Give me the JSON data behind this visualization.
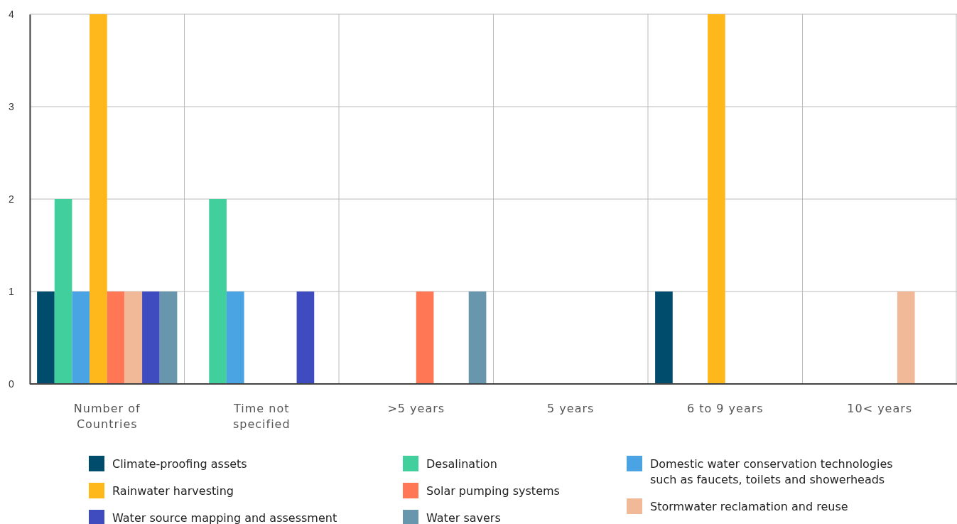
{
  "chart_data": {
    "type": "bar",
    "categories": [
      "Number of Countries",
      "Time not specified",
      ">5 years",
      "5 years",
      "6 to 9 years",
      "10< years"
    ],
    "series": [
      {
        "name": "Climate-proofing assets",
        "color": "#004c6d",
        "values": [
          1,
          0,
          0,
          0,
          1,
          0
        ]
      },
      {
        "name": "Desalination",
        "color": "#42cf9e",
        "values": [
          2,
          2,
          0,
          0,
          0,
          0
        ]
      },
      {
        "name": "Domestic water conservation technologies such as faucets, toilets and showerheads",
        "color": "#4aa3e3",
        "values": [
          1,
          1,
          0,
          0,
          0,
          0
        ]
      },
      {
        "name": "Rainwater harvesting",
        "color": "#ffb81c",
        "values": [
          4,
          0,
          0,
          0,
          4,
          0
        ]
      },
      {
        "name": "Solar pumping systems",
        "color": "#ff7755",
        "values": [
          1,
          0,
          1,
          0,
          0,
          0
        ]
      },
      {
        "name": "Stormwater reclamation and reuse",
        "color": "#f2b999",
        "values": [
          1,
          0,
          0,
          0,
          0,
          1
        ]
      },
      {
        "name": "Water source mapping and assessment",
        "color": "#3f4cc0",
        "values": [
          1,
          1,
          0,
          0,
          0,
          0
        ]
      },
      {
        "name": "Water savers",
        "color": "#6897ad",
        "values": [
          1,
          0,
          1,
          0,
          0,
          0
        ]
      }
    ],
    "ylim": [
      0,
      4
    ],
    "yticks": [
      0,
      1,
      2,
      3,
      4
    ],
    "grid": true,
    "legend": "bottom"
  }
}
